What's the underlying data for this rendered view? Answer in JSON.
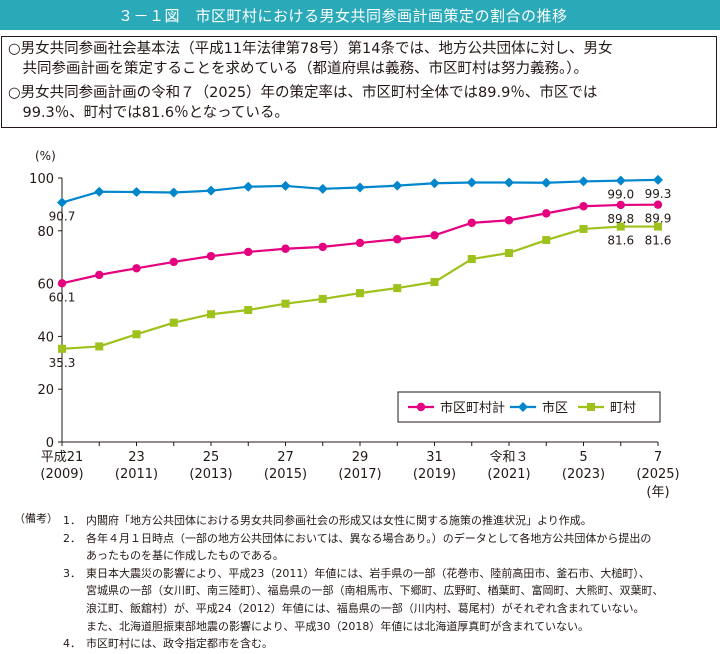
{
  "title": "３－１図　市区町村における男女共同参画計画策定の割合の推移",
  "summary": [
    "○男女共同参画社会基本法（平成11年法律第78号）第14条では、地方公共団体に対し、男女",
    "　共同参画計画を策定することを求めている（都道府県は義務、市区町村は努力義務。）。",
    "○男女共同参画計画の令和７（2025）年の策定率は、市区町村全体では89.9％、市区では",
    "　99.3％、町村では81.6％となっている。"
  ],
  "chart_data": {
    "type": "line",
    "ylabel": "(%)",
    "xlabel": "(年)",
    "ylim": [
      0,
      100
    ],
    "yticks": [
      0,
      20,
      40,
      60,
      80,
      100
    ],
    "x": [
      2009,
      2010,
      2011,
      2012,
      2013,
      2014,
      2015,
      2016,
      2017,
      2018,
      2019,
      2020,
      2021,
      2022,
      2023,
      2024,
      2025
    ],
    "xtick_labels": [
      {
        "x": 2009,
        "era": "平成21",
        "year": "(2009)"
      },
      {
        "x": 2011,
        "era": "23",
        "year": "(2011)"
      },
      {
        "x": 2013,
        "era": "25",
        "year": "(2013)"
      },
      {
        "x": 2015,
        "era": "27",
        "year": "(2015)"
      },
      {
        "x": 2017,
        "era": "29",
        "year": "(2017)"
      },
      {
        "x": 2019,
        "era": "31",
        "year": "(2019)"
      },
      {
        "x": 2021,
        "era": "令和３",
        "year": "(2021)"
      },
      {
        "x": 2023,
        "era": "5",
        "year": "(2023)"
      },
      {
        "x": 2025,
        "era": "7",
        "year": "(2025)"
      }
    ],
    "series": [
      {
        "name": "市区町村計",
        "color": "#e4007f",
        "marker": "circle",
        "values": [
          60.1,
          63.3,
          65.8,
          68.2,
          70.4,
          72.0,
          73.2,
          73.9,
          75.4,
          76.8,
          78.3,
          83.0,
          84.0,
          86.6,
          89.3,
          89.8,
          89.9
        ],
        "labels": [
          {
            "x": 2009,
            "text": "60.1",
            "pos": "below"
          },
          {
            "x": 2024,
            "text": "89.8",
            "pos": "below"
          },
          {
            "x": 2025,
            "text": "89.9",
            "pos": "below"
          }
        ]
      },
      {
        "name": "市区",
        "color": "#0086cd",
        "marker": "diamond",
        "values": [
          90.7,
          94.8,
          94.7,
          94.5,
          95.2,
          96.7,
          97.0,
          95.9,
          96.4,
          97.1,
          98.0,
          98.3,
          98.3,
          98.2,
          98.7,
          99.0,
          99.3
        ],
        "labels": [
          {
            "x": 2009,
            "text": "90.7",
            "pos": "below"
          },
          {
            "x": 2024,
            "text": "99.0",
            "pos": "below"
          },
          {
            "x": 2025,
            "text": "99.3",
            "pos": "below"
          }
        ]
      },
      {
        "name": "町村",
        "color": "#9ec11c",
        "marker": "square",
        "values": [
          35.3,
          36.2,
          40.8,
          45.2,
          48.4,
          50.0,
          52.4,
          54.2,
          56.4,
          58.3,
          60.6,
          69.3,
          71.6,
          76.5,
          80.7,
          81.6,
          81.6
        ],
        "labels": [
          {
            "x": 2009,
            "text": "35.3",
            "pos": "below"
          },
          {
            "x": 2024,
            "text": "81.6",
            "pos": "below"
          },
          {
            "x": 2025,
            "text": "81.6",
            "pos": "below"
          }
        ]
      }
    ],
    "legend_position": "bottom-right",
    "grid": false
  },
  "notes": {
    "header": "（備考）",
    "items": [
      {
        "num": "1．",
        "lines": [
          "内閣府「地方公共団体における男女共同参画社会の形成又は女性に関する施策の推進状況」より作成。"
        ]
      },
      {
        "num": "2．",
        "lines": [
          "各年４月１日時点（一部の地方公共団体においては、異なる場合あり。）のデータとして各地方公共団体から提出の",
          "あったものを基に作成したものである。"
        ]
      },
      {
        "num": "3．",
        "lines": [
          "東日本大震災の影響により、平成23（2011）年値には、岩手県の一部（花巻市、陸前高田市、釜石市、大槌町）、",
          "宮城県の一部（女川町、南三陸町）、福島県の一部（南相馬市、下郷町、広野町、楢葉町、富岡町、大熊町、双葉町、",
          "浪江町、飯舘村）が、平成24（2012）年値には、福島県の一部（川内村、葛尾村）がそれぞれ含まれていない。",
          "また、北海道胆振東部地震の影響により、平成30（2018）年値には北海道厚真町が含まれていない。"
        ]
      },
      {
        "num": "4．",
        "lines": [
          "市区町村には、政令指定都市を含む。"
        ]
      }
    ]
  }
}
